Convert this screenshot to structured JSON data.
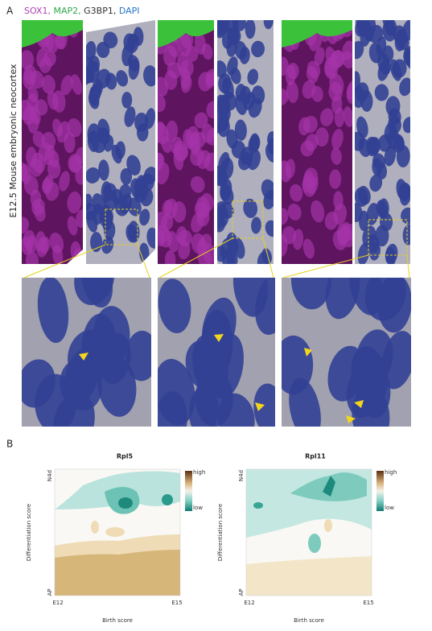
{
  "panel_a": {
    "label": "A",
    "stains": [
      "SOX1,",
      "MAP2,",
      "G3BP1,",
      "DAPI"
    ],
    "side_label": "E12.5 Mouse embryonic neocortex"
  },
  "panel_b": {
    "label": "B",
    "plots": [
      {
        "title": "Rpl5",
        "legend_high": "high",
        "legend_low": "low",
        "y_top": "N4d",
        "y_bottom": "AP",
        "x_left": "E12",
        "x_right": "E15",
        "y_label": "Differentiation score",
        "x_label": "Birth score"
      },
      {
        "title": "Rpl11",
        "legend_high": "high",
        "legend_low": "low",
        "y_top": "N4d",
        "y_bottom": "AP",
        "x_left": "E12",
        "x_right": "E15",
        "y_label": "Differentiation score",
        "x_label": "Birth score"
      }
    ]
  }
}
